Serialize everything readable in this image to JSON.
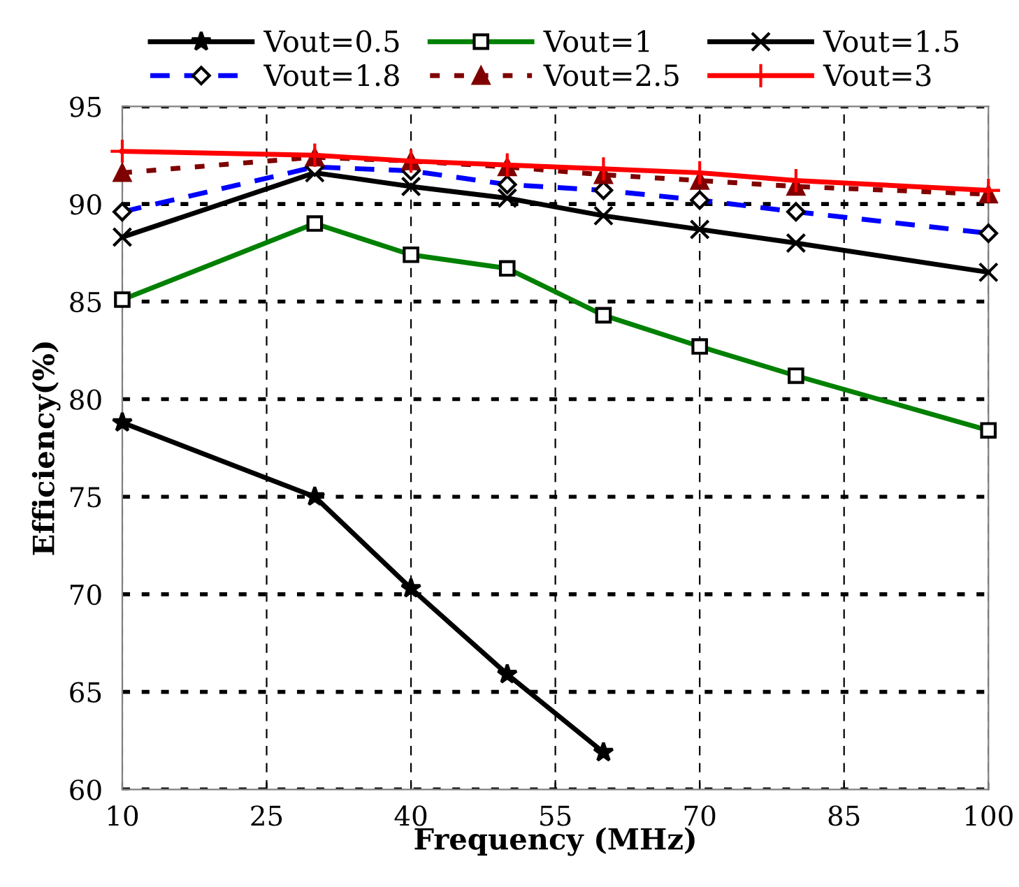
{
  "chart_data": {
    "type": "line",
    "xlabel": "Frequency (MHz)",
    "ylabel": "Efficiency(%)",
    "xlim": [
      10,
      100
    ],
    "xticks": [
      10,
      25,
      40,
      55,
      70,
      85,
      100
    ],
    "ylim": [
      60,
      95
    ],
    "yticks": [
      60,
      65,
      70,
      75,
      80,
      85,
      90,
      95
    ],
    "grid": true,
    "legend": "top",
    "x": [
      10,
      30,
      40,
      50,
      60,
      70,
      80,
      100
    ],
    "series": [
      {
        "name": "Vout=0.5",
        "color": "#000000",
        "marker": "star",
        "line_style": "solid",
        "values": [
          78.8,
          75.0,
          70.3,
          65.9,
          61.9,
          null,
          null,
          null
        ]
      },
      {
        "name": "Vout=1",
        "color": "#008000",
        "marker": "square",
        "line_style": "solid",
        "values": [
          85.1,
          89.0,
          87.4,
          86.7,
          84.3,
          82.7,
          81.2,
          78.4
        ]
      },
      {
        "name": "Vout=1.5",
        "color": "#000000",
        "marker": "cross",
        "line_style": "solid",
        "values": [
          88.3,
          91.6,
          90.9,
          90.3,
          89.4,
          88.7,
          88.0,
          86.5
        ]
      },
      {
        "name": "Vout=1.8",
        "color": "#0000ff",
        "marker": "diamond",
        "line_style": "dashed",
        "values": [
          89.6,
          91.9,
          91.7,
          91.0,
          90.7,
          90.2,
          89.6,
          88.5
        ]
      },
      {
        "name": "Vout=2.5",
        "color": "#7f0000",
        "marker": "triangle",
        "line_style": "dotted",
        "values": [
          91.6,
          92.4,
          92.2,
          91.9,
          91.5,
          91.2,
          90.9,
          90.5
        ]
      },
      {
        "name": "Vout=3",
        "color": "#ff0000",
        "marker": "plus",
        "line_style": "solid",
        "values": [
          92.7,
          92.5,
          92.2,
          92.0,
          91.8,
          91.6,
          91.2,
          90.7
        ]
      }
    ]
  }
}
